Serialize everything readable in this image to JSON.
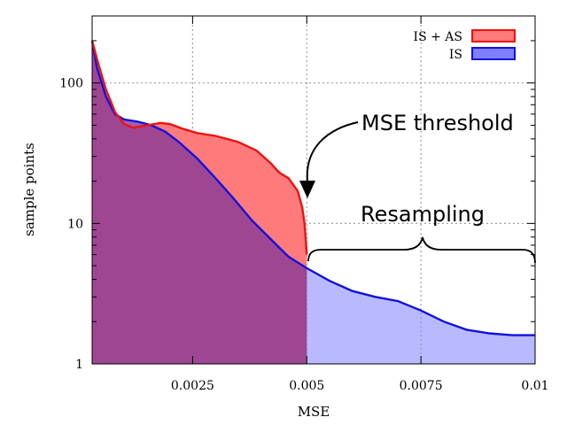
{
  "chart_data": {
    "type": "area",
    "title": "",
    "xlabel": "MSE",
    "ylabel": "sample points",
    "xlim": [
      0.0003,
      0.01
    ],
    "ylim": [
      1,
      300
    ],
    "yscale": "log",
    "grid": true,
    "legend_position": "top-right",
    "x_ticks": [
      {
        "value": 0.0025,
        "label": "0.0025"
      },
      {
        "value": 0.005,
        "label": "0.005"
      },
      {
        "value": 0.0075,
        "label": "0.0075"
      },
      {
        "value": 0.01,
        "label": "0.01"
      }
    ],
    "y_ticks": [
      {
        "value": 1,
        "label": "1"
      },
      {
        "value": 10,
        "label": "10"
      },
      {
        "value": 100,
        "label": "100"
      }
    ],
    "series": [
      {
        "name": "IS + AS",
        "color": "#ee1111",
        "fill": "#ff7b7b",
        "x": [
          0.0003,
          0.0004,
          0.0006,
          0.0008,
          0.001,
          0.0012,
          0.0015,
          0.0018,
          0.002,
          0.0023,
          0.0026,
          0.003,
          0.0035,
          0.0039,
          0.0042,
          0.0044,
          0.0046,
          0.0048,
          0.0049,
          0.00495,
          0.005
        ],
        "y": [
          200,
          150,
          90,
          62,
          51,
          48,
          50,
          52,
          51,
          47,
          44,
          42,
          38,
          33,
          27,
          23,
          21,
          17,
          13,
          10,
          6
        ]
      },
      {
        "name": "IS",
        "color": "#1111dd",
        "fill": "#7f7fff",
        "x": [
          0.0003,
          0.0004,
          0.0006,
          0.0008,
          0.001,
          0.0013,
          0.0016,
          0.0019,
          0.0022,
          0.0026,
          0.003,
          0.0034,
          0.0038,
          0.0042,
          0.0046,
          0.005,
          0.0055,
          0.006,
          0.0065,
          0.007,
          0.0075,
          0.008,
          0.0085,
          0.009,
          0.0095,
          0.01
        ],
        "y": [
          200,
          130,
          80,
          60,
          55,
          53,
          50,
          45,
          38,
          29,
          21,
          15,
          10.5,
          7.8,
          5.8,
          4.8,
          3.9,
          3.3,
          3.0,
          2.8,
          2.4,
          2.0,
          1.75,
          1.65,
          1.6,
          1.6
        ]
      }
    ],
    "annotations": [
      {
        "text": "MSE threshold",
        "points_to": {
          "x": 0.005,
          "y": 18
        }
      },
      {
        "text": "Resampling",
        "span": [
          0.005,
          0.01
        ]
      }
    ]
  }
}
